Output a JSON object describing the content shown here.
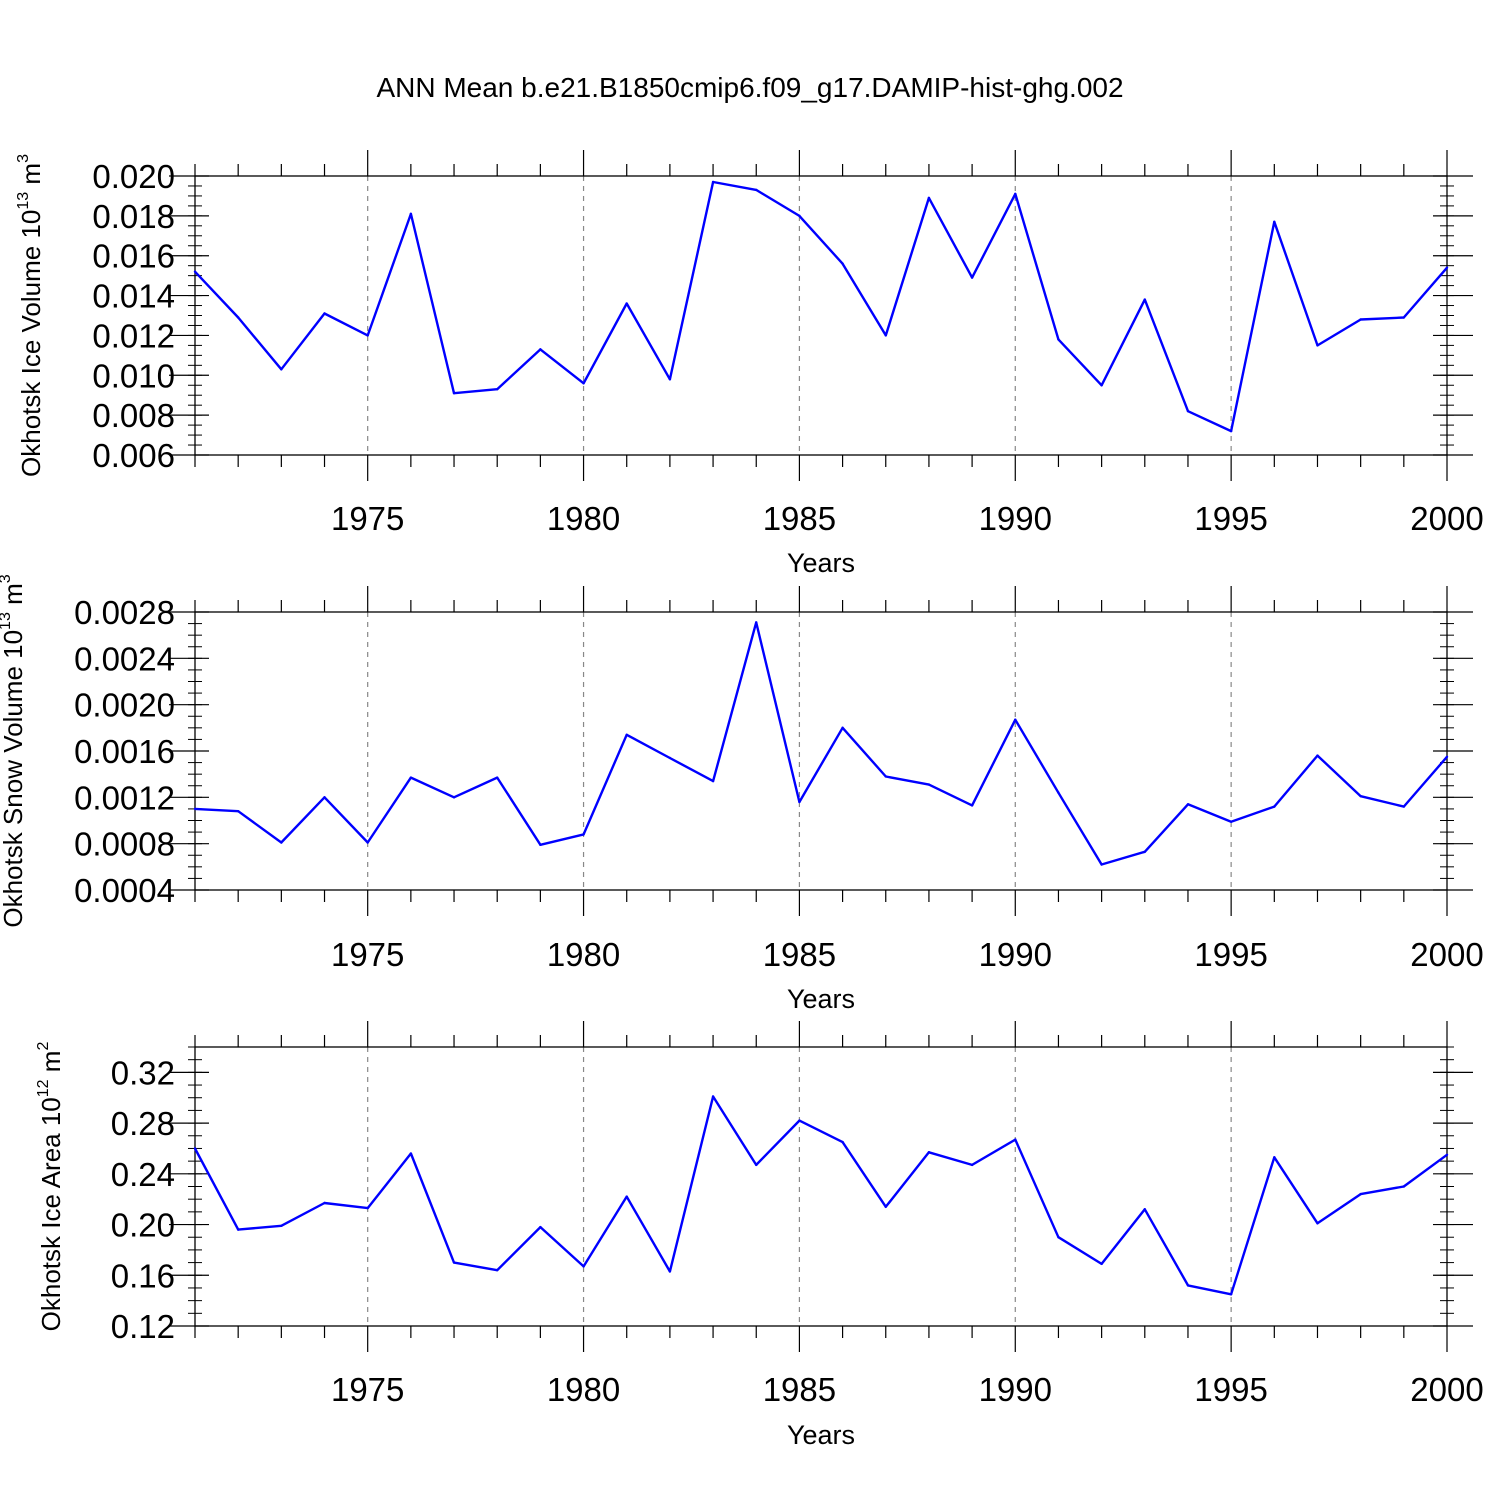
{
  "title": "ANN Mean b.e21.B1850cmip6.f09_g17.DAMIP-hist-ghg.002",
  "line_color": "#0000ff",
  "chart_data": [
    {
      "type": "line",
      "ylabel": "Okhotsk Ice Volume 10",
      "ylabel_exp": "13",
      "ylabel_unit": "m",
      "ylabel_unit_exp": "3",
      "xlabel": "Years",
      "xlim": [
        1971,
        2000
      ],
      "ylim": [
        0.006,
        0.02
      ],
      "yticks": [
        0.006,
        0.008,
        0.01,
        0.012,
        0.014,
        0.016,
        0.018,
        0.02
      ],
      "ytick_labels": [
        "0.006",
        "0.008",
        "0.010",
        "0.012",
        "0.014",
        "0.016",
        "0.018",
        "0.020"
      ],
      "yminor_step": 0.0005,
      "xticks": [
        1975,
        1980,
        1985,
        1990,
        1995,
        2000
      ],
      "xtick_labels": [
        "1975",
        "1980",
        "1985",
        "1990",
        "1995",
        "2000"
      ],
      "x": [
        1971,
        1972,
        1973,
        1974,
        1975,
        1976,
        1977,
        1978,
        1979,
        1980,
        1981,
        1982,
        1983,
        1984,
        1985,
        1986,
        1987,
        1988,
        1989,
        1990,
        1991,
        1992,
        1993,
        1994,
        1995,
        1996,
        1997,
        1998,
        1999,
        2000
      ],
      "values": [
        0.0152,
        0.0129,
        0.0103,
        0.0131,
        0.012,
        0.0181,
        0.0091,
        0.0093,
        0.0113,
        0.0096,
        0.0136,
        0.0098,
        0.0197,
        0.0193,
        0.018,
        0.0156,
        0.012,
        0.0189,
        0.0149,
        0.0191,
        0.0118,
        0.0095,
        0.0138,
        0.0082,
        0.0072,
        0.0177,
        0.0115,
        0.0128,
        0.0129,
        0.0154
      ]
    },
    {
      "type": "line",
      "ylabel": "Okhotsk Snow Volume 10",
      "ylabel_exp": "13",
      "ylabel_unit": "m",
      "ylabel_unit_exp": "3",
      "xlabel": "Years",
      "xlim": [
        1971,
        2000
      ],
      "ylim": [
        0.0004,
        0.0028
      ],
      "yticks": [
        0.0004,
        0.0008,
        0.0012,
        0.0016,
        0.002,
        0.0024,
        0.0028
      ],
      "ytick_labels": [
        "0.0004",
        "0.0008",
        "0.0012",
        "0.0016",
        "0.0020",
        "0.0024",
        "0.0028"
      ],
      "yminor_step": 0.0001,
      "xticks": [
        1975,
        1980,
        1985,
        1990,
        1995,
        2000
      ],
      "xtick_labels": [
        "1975",
        "1980",
        "1985",
        "1990",
        "1995",
        "2000"
      ],
      "x": [
        1971,
        1972,
        1973,
        1974,
        1975,
        1976,
        1977,
        1978,
        1979,
        1980,
        1981,
        1982,
        1983,
        1984,
        1985,
        1986,
        1987,
        1988,
        1989,
        1990,
        1991,
        1992,
        1993,
        1994,
        1995,
        1996,
        1997,
        1998,
        1999,
        2000
      ],
      "values": [
        0.0011,
        0.00108,
        0.00081,
        0.0012,
        0.00081,
        0.00137,
        0.0012,
        0.00137,
        0.00079,
        0.00088,
        0.00174,
        0.00154,
        0.00134,
        0.00271,
        0.00116,
        0.0018,
        0.00138,
        0.00131,
        0.00113,
        0.00187,
        0.00124,
        0.00062,
        0.00073,
        0.00114,
        0.00099,
        0.00112,
        0.00156,
        0.00121,
        0.00112,
        0.00155
      ]
    },
    {
      "type": "line",
      "ylabel": "Okhotsk Ice Area 10",
      "ylabel_exp": "12",
      "ylabel_unit": "m",
      "ylabel_unit_exp": "2",
      "xlabel": "Years",
      "xlim": [
        1971,
        2000
      ],
      "ylim": [
        0.12,
        0.34
      ],
      "yticks": [
        0.12,
        0.16,
        0.2,
        0.24,
        0.28,
        0.32
      ],
      "ytick_labels": [
        "0.12",
        "0.16",
        "0.20",
        "0.24",
        "0.28",
        "0.32"
      ],
      "yminor_step": 0.01,
      "xticks": [
        1975,
        1980,
        1985,
        1990,
        1995,
        2000
      ],
      "xtick_labels": [
        "1975",
        "1980",
        "1985",
        "1990",
        "1995",
        "2000"
      ],
      "x": [
        1971,
        1972,
        1973,
        1974,
        1975,
        1976,
        1977,
        1978,
        1979,
        1980,
        1981,
        1982,
        1983,
        1984,
        1985,
        1986,
        1987,
        1988,
        1989,
        1990,
        1991,
        1992,
        1993,
        1994,
        1995,
        1996,
        1997,
        1998,
        1999,
        2000
      ],
      "values": [
        0.26,
        0.196,
        0.199,
        0.217,
        0.213,
        0.256,
        0.17,
        0.164,
        0.198,
        0.167,
        0.222,
        0.163,
        0.301,
        0.247,
        0.282,
        0.265,
        0.214,
        0.257,
        0.247,
        0.267,
        0.19,
        0.169,
        0.212,
        0.152,
        0.145,
        0.253,
        0.201,
        0.224,
        0.23,
        0.255
      ]
    }
  ]
}
